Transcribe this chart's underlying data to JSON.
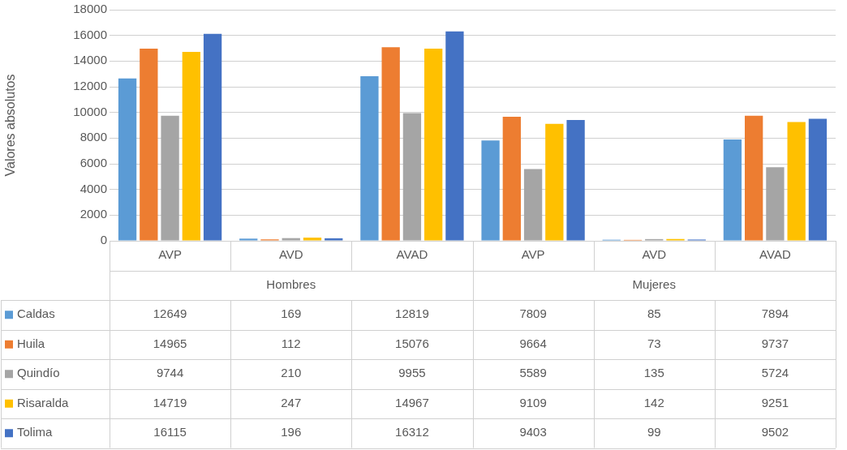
{
  "chart_data": {
    "type": "bar",
    "ylabel": "Valores absolutos",
    "categories": [
      "AVP",
      "AVD",
      "AVAD",
      "AVP",
      "AVD",
      "AVAD"
    ],
    "annotations": [
      "Hombres",
      "Mujeres"
    ],
    "series": [
      {
        "name": "Caldas",
        "color": "#5b9bd5",
        "values": [
          12649,
          169,
          12819,
          7809,
          85,
          7894
        ]
      },
      {
        "name": "Huila",
        "color": "#ed7d31",
        "values": [
          14965,
          112,
          15076,
          9664,
          73,
          9737
        ]
      },
      {
        "name": "Quindío",
        "color": "#a5a5a5",
        "values": [
          9744,
          210,
          9955,
          5589,
          135,
          5724
        ]
      },
      {
        "name": "Risaralda",
        "color": "#ffc000",
        "values": [
          14719,
          247,
          14967,
          9109,
          142,
          9251
        ]
      },
      {
        "name": "Tolima",
        "color": "#4472c4",
        "values": [
          16115,
          196,
          16312,
          9403,
          99,
          9502
        ]
      }
    ],
    "ylim": [
      0,
      18000
    ],
    "yticks": [
      0,
      2000,
      4000,
      6000,
      8000,
      10000,
      12000,
      14000,
      16000,
      18000
    ],
    "grid": "y",
    "legend": "bottom left",
    "data_labels": true
  }
}
